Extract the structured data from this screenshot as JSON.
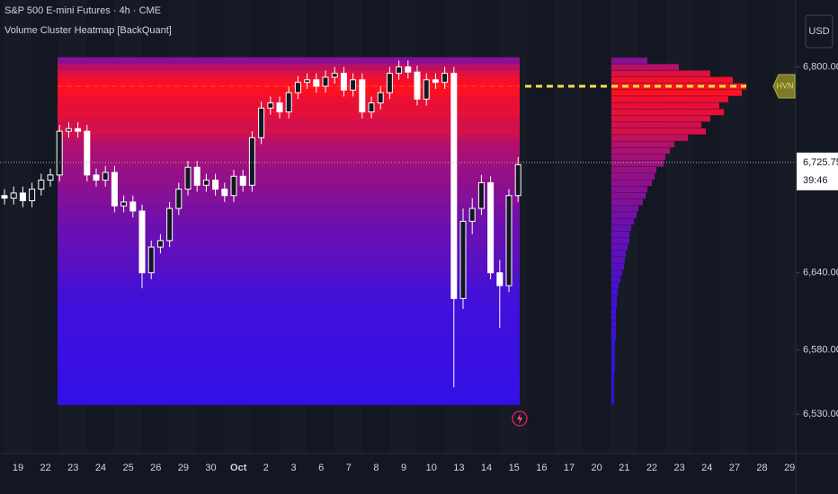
{
  "chart_data": {
    "type": "candlestick",
    "title": "S&P 500 E-mini Futures · 4h · CME",
    "indicator": "Volume Cluster Heatmap [BackQuant]",
    "currency": "USD",
    "xticks": [
      "19",
      "22",
      "23",
      "24",
      "25",
      "26",
      "29",
      "30",
      "Oct",
      "2",
      "3",
      "6",
      "7",
      "8",
      "9",
      "10",
      "13",
      "14",
      "15",
      "16",
      "17",
      "20",
      "21",
      "22",
      "23",
      "24",
      "27",
      "28",
      "29"
    ],
    "ylim": [
      6496,
      6852
    ],
    "yticks": [
      {
        "value": 6800,
        "label": "6,800.00"
      },
      {
        "value": 6640,
        "label": "6,640.00"
      },
      {
        "value": 6580,
        "label": "6,580.00"
      },
      {
        "value": 6530,
        "label": "6,530.00"
      }
    ],
    "last_price": {
      "value": 6725.75,
      "label": "6,725.75"
    },
    "countdown": "39:46",
    "candle_color": "#ffffff",
    "candles": {
      "open": [
        6700,
        6698,
        6702,
        6696,
        6705,
        6712,
        6716,
        6750,
        6752,
        6750,
        6716,
        6712,
        6718,
        6692,
        6695,
        6688,
        6640,
        6660,
        6665,
        6690,
        6705,
        6722,
        6708,
        6712,
        6705,
        6700,
        6715,
        6708,
        6745,
        6768,
        6772,
        6765,
        6780,
        6788,
        6790,
        6785,
        6792,
        6795,
        6782,
        6790,
        6765,
        6772,
        6780,
        6795,
        6800,
        6796,
        6775,
        6790,
        6788,
        6795,
        6620,
        6680,
        6690,
        6710,
        6640,
        6630,
        6700
      ],
      "high": [
        6705,
        6707,
        6707,
        6710,
        6717,
        6721,
        6755,
        6757,
        6757,
        6755,
        6721,
        6723,
        6723,
        6700,
        6700,
        6693,
        6665,
        6670,
        6695,
        6710,
        6727,
        6727,
        6717,
        6717,
        6710,
        6720,
        6720,
        6750,
        6773,
        6777,
        6777,
        6785,
        6793,
        6795,
        6795,
        6797,
        6800,
        6800,
        6795,
        6795,
        6777,
        6785,
        6800,
        6805,
        6805,
        6801,
        6795,
        6795,
        6800,
        6800,
        6690,
        6698,
        6716,
        6715,
        6650,
        6705,
        6730
      ],
      "low": [
        6693,
        6693,
        6691,
        6691,
        6700,
        6707,
        6711,
        6745,
        6745,
        6711,
        6707,
        6707,
        6687,
        6687,
        6683,
        6628,
        6635,
        6655,
        6660,
        6685,
        6700,
        6703,
        6703,
        6700,
        6695,
        6695,
        6703,
        6703,
        6740,
        6763,
        6760,
        6760,
        6775,
        6783,
        6780,
        6780,
        6787,
        6777,
        6777,
        6760,
        6760,
        6767,
        6775,
        6790,
        6791,
        6770,
        6770,
        6783,
        6783,
        6551,
        6612,
        6670,
        6685,
        6635,
        6597,
        6625,
        6695
      ],
      "close": [
        6698,
        6702,
        6696,
        6705,
        6712,
        6716,
        6750,
        6752,
        6750,
        6716,
        6712,
        6718,
        6692,
        6695,
        6688,
        6640,
        6660,
        6665,
        6690,
        6705,
        6722,
        6708,
        6712,
        6705,
        6700,
        6715,
        6708,
        6745,
        6768,
        6772,
        6765,
        6780,
        6788,
        6790,
        6785,
        6792,
        6795,
        6782,
        6790,
        6765,
        6772,
        6780,
        6795,
        6800,
        6796,
        6775,
        6790,
        6788,
        6795,
        6620,
        6680,
        6690,
        6710,
        6640,
        6630,
        6700,
        6724
      ]
    },
    "profile": {
      "levels": [
        6805,
        6800,
        6795,
        6790,
        6785,
        6780,
        6775,
        6770,
        6765,
        6760,
        6755,
        6750,
        6745,
        6740,
        6735,
        6730,
        6725,
        6720,
        6715,
        6710,
        6705,
        6700,
        6695,
        6690,
        6685,
        6680,
        6675,
        6670,
        6665,
        6660,
        6655,
        6650,
        6645,
        6640,
        6635,
        6630,
        6625,
        6620,
        6615,
        6610,
        6605,
        6600,
        6595,
        6590,
        6585,
        6580,
        6575,
        6570,
        6565,
        6560,
        6555,
        6550,
        6545,
        6540
      ],
      "volumes": [
        40,
        75,
        110,
        135,
        150,
        145,
        130,
        120,
        125,
        110,
        100,
        105,
        85,
        70,
        65,
        60,
        58,
        50,
        48,
        45,
        40,
        38,
        35,
        30,
        28,
        25,
        22,
        20,
        20,
        18,
        16,
        15,
        14,
        12,
        10,
        8,
        7,
        6,
        6,
        5,
        5,
        5,
        5,
        5,
        4,
        4,
        4,
        4,
        4,
        3,
        3,
        3,
        3,
        3
      ]
    },
    "hvn": {
      "value": 6785,
      "label": "HVN"
    }
  }
}
